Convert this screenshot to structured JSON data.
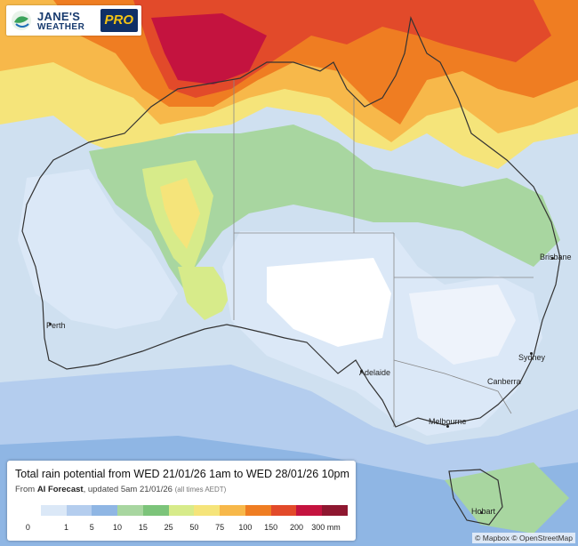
{
  "logo": {
    "line1": "JANE'S",
    "line2": "WEATHER",
    "badge": "PRO"
  },
  "cities": [
    {
      "name": "Brisbane"
    },
    {
      "name": "Perth"
    },
    {
      "name": "Sydney"
    },
    {
      "name": "Adelaide"
    },
    {
      "name": "Canberra"
    },
    {
      "name": "Melbourne"
    },
    {
      "name": "Hobart"
    }
  ],
  "legend": {
    "title": "Total rain potential from WED 21/01/26 1am to WED 28/01/26 10pm",
    "sub_prefix": "From ",
    "sub_source": "AI Forecast",
    "sub_updated": ", updated 5am 21/01/26 ",
    "sub_note": "(all times AEDT)",
    "ticks": [
      "0",
      "1",
      "5",
      "10",
      "15",
      "25",
      "50",
      "75",
      "100",
      "150",
      "200",
      "300 mm"
    ],
    "colors": [
      "#ffffff",
      "#dbe8f7",
      "#b4cdee",
      "#8fb6e4",
      "#a8d6a0",
      "#7cc47a",
      "#d7eb8a",
      "#f5e47a",
      "#f7b84a",
      "#ef7d22",
      "#e24a2a",
      "#c4133f",
      "#8e1730"
    ]
  },
  "attribution": "© Mapbox © OpenStreetMap"
}
